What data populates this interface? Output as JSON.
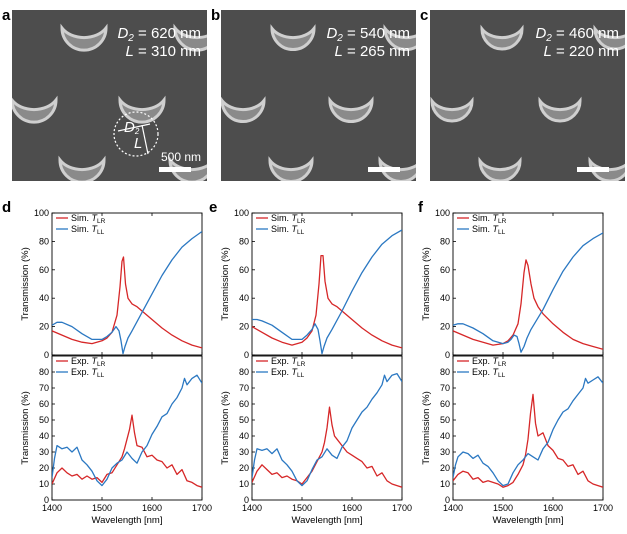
{
  "colors": {
    "red": "#d62728",
    "blue": "#2b78c2",
    "sem_bg": "#4d4d4d",
    "moon": "#cfcfcf"
  },
  "sem_panels": [
    {
      "label": "a",
      "d_param": "D",
      "d_sub": "2",
      "d_value": " = 620 nm",
      "l_param": "L",
      "l_value": " = 310 nm",
      "scale_label": "500 nm",
      "inset_d": "D",
      "inset_d_sub": "2",
      "inset_l": "L"
    },
    {
      "label": "b",
      "d_param": "D",
      "d_sub": "2",
      "d_value": " = 540 nm",
      "l_param": "L",
      "l_value": " = 265 nm"
    },
    {
      "label": "c",
      "d_param": "D",
      "d_sub": "2",
      "d_value": " = 460 nm",
      "l_param": "L",
      "l_value": " = 220 nm"
    }
  ],
  "chart_data": [
    {
      "panel": "d",
      "type": "line",
      "kind": "sim",
      "xlim": [
        1400,
        1700
      ],
      "ylim": [
        0,
        100
      ],
      "yticks": [
        0,
        20,
        40,
        60,
        80,
        100
      ],
      "ylabel": "Transmission (%)",
      "legend": [
        {
          "prefix": "Sim. ",
          "sym": "T",
          "sub": "LR",
          "color": "red"
        },
        {
          "prefix": "Sim. ",
          "sym": "T",
          "sub": "LL",
          "color": "blue"
        }
      ],
      "series": [
        {
          "name": "Sim. T_LR",
          "color": "red",
          "x": [
            1400,
            1420,
            1440,
            1460,
            1480,
            1500,
            1510,
            1520,
            1530,
            1536,
            1540,
            1543,
            1547,
            1552,
            1560,
            1570,
            1580,
            1600,
            1620,
            1640,
            1660,
            1680,
            1700
          ],
          "y": [
            17,
            14,
            11,
            9,
            8,
            10,
            12,
            16,
            28,
            48,
            66,
            69,
            50,
            40,
            36,
            34,
            31,
            25,
            19,
            14,
            10,
            7,
            5
          ]
        },
        {
          "name": "Sim. T_LL",
          "color": "blue",
          "x": [
            1400,
            1410,
            1420,
            1440,
            1460,
            1480,
            1500,
            1510,
            1520,
            1528,
            1534,
            1538,
            1542,
            1546,
            1552,
            1560,
            1580,
            1600,
            1620,
            1640,
            1660,
            1680,
            1700
          ],
          "y": [
            21,
            23,
            23,
            20,
            15,
            11,
            11,
            13,
            16,
            20,
            17,
            10,
            1,
            6,
            12,
            17,
            30,
            43,
            56,
            67,
            76,
            82,
            87
          ]
        }
      ]
    },
    {
      "panel": "d",
      "type": "line",
      "kind": "exp",
      "xlim": [
        1400,
        1700
      ],
      "ylim": [
        0,
        90
      ],
      "yticks": [
        0,
        10,
        20,
        30,
        40,
        50,
        60,
        70,
        80
      ],
      "xticks": [
        1400,
        1500,
        1600,
        1700
      ],
      "ylabel": "Transmission (%)",
      "xlabel": "Wavelength [nm]",
      "legend": [
        {
          "prefix": "Exp. ",
          "sym": "T",
          "sub": "LR",
          "color": "red"
        },
        {
          "prefix": "Exp. ",
          "sym": "T",
          "sub": "LL",
          "color": "blue"
        }
      ],
      "series": [
        {
          "name": "Exp. T_LR",
          "color": "red",
          "x": [
            1400,
            1410,
            1420,
            1430,
            1440,
            1450,
            1460,
            1470,
            1480,
            1490,
            1500,
            1510,
            1520,
            1530,
            1540,
            1545,
            1550,
            1555,
            1560,
            1565,
            1570,
            1580,
            1590,
            1600,
            1610,
            1620,
            1630,
            1640,
            1650,
            1660,
            1670,
            1680,
            1690,
            1700
          ],
          "y": [
            10,
            17,
            20,
            17,
            15,
            16,
            13,
            15,
            13,
            14,
            11,
            16,
            17,
            22,
            27,
            32,
            38,
            44,
            53,
            42,
            34,
            33,
            27,
            28,
            25,
            24,
            20,
            22,
            16,
            19,
            12,
            11,
            9,
            8
          ]
        },
        {
          "name": "Exp. T_LL",
          "color": "blue",
          "x": [
            1400,
            1405,
            1410,
            1420,
            1430,
            1440,
            1450,
            1460,
            1470,
            1480,
            1490,
            1500,
            1510,
            1520,
            1530,
            1540,
            1550,
            1560,
            1570,
            1580,
            1590,
            1600,
            1610,
            1620,
            1630,
            1640,
            1650,
            1660,
            1665,
            1670,
            1680,
            1690,
            1700
          ],
          "y": [
            14,
            26,
            34,
            32,
            33,
            30,
            33,
            25,
            22,
            18,
            12,
            9,
            13,
            20,
            23,
            25,
            30,
            26,
            23,
            30,
            34,
            41,
            46,
            52,
            54,
            60,
            64,
            70,
            76,
            72,
            76,
            78,
            73
          ]
        }
      ]
    },
    {
      "panel": "e",
      "type": "line",
      "kind": "sim",
      "xlim": [
        1400,
        1700
      ],
      "ylim": [
        0,
        100
      ],
      "yticks": [
        0,
        20,
        40,
        60,
        80,
        100
      ],
      "ylabel": "Transmission (%)",
      "legend": [
        {
          "prefix": "Sim. ",
          "sym": "T",
          "sub": "LR",
          "color": "red"
        },
        {
          "prefix": "Sim. ",
          "sym": "T",
          "sub": "LL",
          "color": "blue"
        }
      ],
      "series": [
        {
          "name": "Sim. T_LR",
          "color": "red",
          "x": [
            1400,
            1420,
            1440,
            1460,
            1480,
            1500,
            1510,
            1520,
            1528,
            1534,
            1538,
            1542,
            1546,
            1552,
            1560,
            1570,
            1580,
            1600,
            1620,
            1640,
            1660,
            1680,
            1700
          ],
          "y": [
            20,
            16,
            12,
            9,
            7,
            9,
            12,
            17,
            28,
            50,
            70,
            70,
            52,
            40,
            36,
            34,
            31,
            25,
            19,
            14,
            10,
            7,
            5
          ]
        },
        {
          "name": "Sim. T_LL",
          "color": "blue",
          "x": [
            1400,
            1410,
            1420,
            1440,
            1460,
            1480,
            1500,
            1510,
            1520,
            1526,
            1532,
            1536,
            1540,
            1544,
            1550,
            1560,
            1580,
            1600,
            1620,
            1640,
            1660,
            1680,
            1700
          ],
          "y": [
            25,
            25,
            24,
            21,
            16,
            11,
            11,
            14,
            18,
            22,
            18,
            10,
            1,
            6,
            12,
            18,
            31,
            45,
            58,
            69,
            78,
            84,
            88
          ]
        }
      ]
    },
    {
      "panel": "e",
      "type": "line",
      "kind": "exp",
      "xlim": [
        1400,
        1700
      ],
      "ylim": [
        0,
        90
      ],
      "yticks": [
        0,
        10,
        20,
        30,
        40,
        50,
        60,
        70,
        80
      ],
      "xticks": [
        1400,
        1500,
        1600,
        1700
      ],
      "ylabel": "Transmission (%)",
      "xlabel": "Wavelength [nm]",
      "legend": [
        {
          "prefix": "Exp. ",
          "sym": "T",
          "sub": "LR",
          "color": "red"
        },
        {
          "prefix": "Exp. ",
          "sym": "T",
          "sub": "LL",
          "color": "blue"
        }
      ],
      "series": [
        {
          "name": "Exp. T_LR",
          "color": "red",
          "x": [
            1400,
            1410,
            1420,
            1430,
            1440,
            1450,
            1460,
            1470,
            1480,
            1490,
            1500,
            1510,
            1520,
            1530,
            1540,
            1545,
            1550,
            1555,
            1560,
            1565,
            1570,
            1580,
            1590,
            1600,
            1610,
            1620,
            1630,
            1640,
            1650,
            1660,
            1670,
            1680,
            1690,
            1700
          ],
          "y": [
            11,
            18,
            22,
            19,
            16,
            17,
            14,
            15,
            13,
            12,
            10,
            14,
            18,
            24,
            30,
            36,
            45,
            58,
            47,
            40,
            38,
            34,
            30,
            28,
            26,
            24,
            20,
            21,
            15,
            17,
            12,
            10,
            9,
            8
          ]
        },
        {
          "name": "Exp. T_LL",
          "color": "blue",
          "x": [
            1400,
            1405,
            1410,
            1420,
            1430,
            1440,
            1450,
            1460,
            1470,
            1480,
            1490,
            1500,
            1510,
            1520,
            1530,
            1540,
            1550,
            1560,
            1570,
            1580,
            1590,
            1600,
            1610,
            1620,
            1630,
            1640,
            1650,
            1660,
            1665,
            1670,
            1680,
            1690,
            1700
          ],
          "y": [
            14,
            25,
            32,
            31,
            32,
            29,
            32,
            25,
            22,
            18,
            12,
            9,
            12,
            19,
            25,
            27,
            32,
            28,
            26,
            33,
            37,
            45,
            50,
            55,
            58,
            63,
            67,
            72,
            78,
            74,
            78,
            79,
            74
          ]
        }
      ]
    },
    {
      "panel": "f",
      "type": "line",
      "kind": "sim",
      "xlim": [
        1400,
        1700
      ],
      "ylim": [
        0,
        100
      ],
      "yticks": [
        0,
        20,
        40,
        60,
        80,
        100
      ],
      "ylabel": "Transmission (%)",
      "legend": [
        {
          "prefix": "Sim. ",
          "sym": "T",
          "sub": "LR",
          "color": "red"
        },
        {
          "prefix": "Sim. ",
          "sym": "T",
          "sub": "LL",
          "color": "blue"
        }
      ],
      "series": [
        {
          "name": "Sim. T_LR",
          "color": "red",
          "x": [
            1400,
            1420,
            1440,
            1460,
            1480,
            1500,
            1510,
            1520,
            1530,
            1536,
            1542,
            1546,
            1550,
            1556,
            1562,
            1570,
            1580,
            1600,
            1620,
            1640,
            1660,
            1680,
            1700
          ],
          "y": [
            17,
            14,
            11,
            9,
            7,
            8,
            10,
            14,
            22,
            36,
            58,
            67,
            63,
            50,
            40,
            34,
            29,
            22,
            16,
            11,
            8,
            6,
            4
          ]
        },
        {
          "name": "Sim. T_LL",
          "color": "blue",
          "x": [
            1400,
            1410,
            1420,
            1440,
            1460,
            1480,
            1500,
            1510,
            1516,
            1522,
            1528,
            1532,
            1536,
            1542,
            1548,
            1556,
            1580,
            1600,
            1620,
            1640,
            1660,
            1680,
            1700
          ],
          "y": [
            21,
            22,
            22,
            19,
            15,
            10,
            8,
            9,
            11,
            14,
            13,
            8,
            2,
            6,
            12,
            18,
            32,
            46,
            59,
            69,
            77,
            82,
            86
          ]
        }
      ]
    },
    {
      "panel": "f",
      "type": "line",
      "kind": "exp",
      "xlim": [
        1400,
        1700
      ],
      "ylim": [
        0,
        90
      ],
      "yticks": [
        0,
        10,
        20,
        30,
        40,
        50,
        60,
        70,
        80
      ],
      "xticks": [
        1400,
        1500,
        1600,
        1700
      ],
      "ylabel": "Transmission (%)",
      "xlabel": "Wavelength [nm]",
      "legend": [
        {
          "prefix": "Exp. ",
          "sym": "T",
          "sub": "LR",
          "color": "red"
        },
        {
          "prefix": "Exp. ",
          "sym": "T",
          "sub": "LL",
          "color": "blue"
        }
      ],
      "series": [
        {
          "name": "Exp. T_LR",
          "color": "red",
          "x": [
            1400,
            1410,
            1420,
            1430,
            1440,
            1450,
            1460,
            1470,
            1480,
            1490,
            1500,
            1510,
            1520,
            1530,
            1540,
            1545,
            1550,
            1555,
            1560,
            1565,
            1570,
            1580,
            1590,
            1600,
            1610,
            1620,
            1630,
            1640,
            1650,
            1660,
            1670,
            1680,
            1690,
            1700
          ],
          "y": [
            12,
            16,
            18,
            17,
            13,
            14,
            11,
            12,
            11,
            10,
            8,
            9,
            11,
            16,
            22,
            28,
            38,
            54,
            66,
            48,
            40,
            42,
            34,
            31,
            26,
            25,
            21,
            22,
            16,
            18,
            12,
            10,
            9,
            8
          ]
        },
        {
          "name": "Exp. T_LL",
          "color": "blue",
          "x": [
            1400,
            1405,
            1410,
            1420,
            1430,
            1440,
            1450,
            1460,
            1470,
            1480,
            1490,
            1500,
            1510,
            1520,
            1530,
            1540,
            1550,
            1560,
            1570,
            1580,
            1590,
            1600,
            1610,
            1620,
            1630,
            1640,
            1650,
            1660,
            1665,
            1670,
            1680,
            1690,
            1700
          ],
          "y": [
            14,
            22,
            27,
            30,
            29,
            26,
            28,
            23,
            21,
            17,
            12,
            9,
            10,
            17,
            22,
            25,
            29,
            27,
            25,
            32,
            36,
            44,
            50,
            55,
            57,
            62,
            66,
            70,
            76,
            73,
            75,
            77,
            73
          ]
        }
      ]
    }
  ]
}
